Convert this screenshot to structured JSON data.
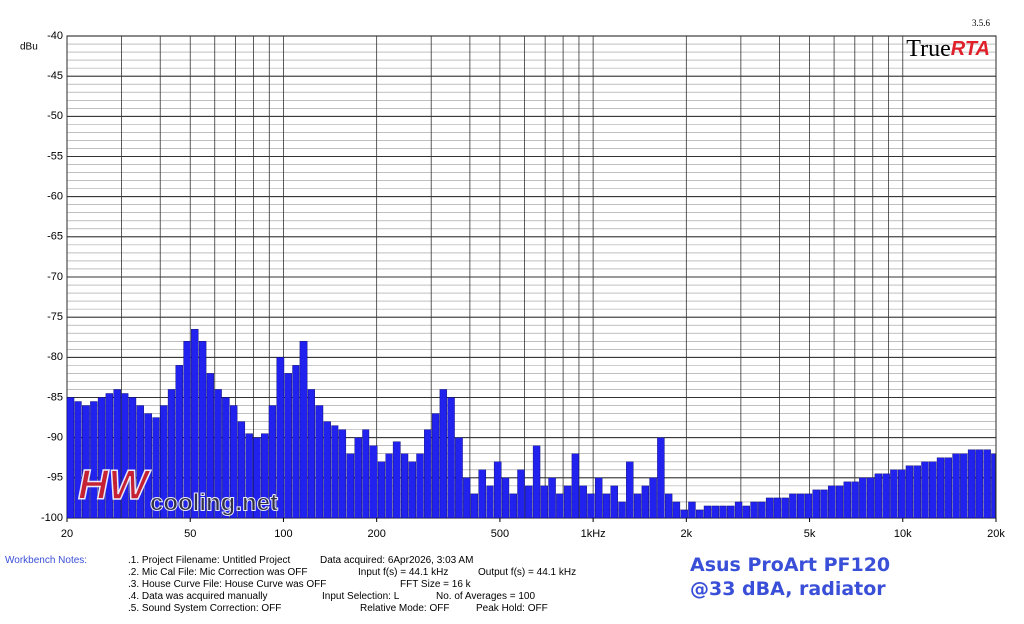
{
  "chart_data": {
    "type": "bar",
    "version": "3.5.6",
    "logo": [
      "True",
      "RTA"
    ],
    "watermark": [
      "HW",
      "cooling.net"
    ],
    "ylabel": "dBu",
    "annotation": [
      "Asus ProArt PF120",
      "@33 dBA, radiator"
    ],
    "color": "#2222ee",
    "log_x": true,
    "xlim": [
      20,
      20000
    ],
    "ylim": [
      -100,
      -40
    ],
    "yticks": [
      -40,
      -45,
      -50,
      -55,
      -60,
      -65,
      -70,
      -75,
      -80,
      -85,
      -90,
      -95,
      -100
    ],
    "ygrid_step": 1,
    "xticks": [
      20,
      50,
      100,
      200,
      500,
      {
        "value": 1000,
        "label": "1kHz"
      },
      {
        "value": 2000,
        "label": "2k"
      },
      {
        "value": 5000,
        "label": "5k"
      },
      {
        "value": 10000,
        "label": "10k"
      },
      {
        "value": 20000,
        "label": "20k"
      }
    ],
    "xgrid": [
      20,
      30,
      40,
      50,
      60,
      70,
      80,
      90,
      100,
      200,
      300,
      400,
      500,
      600,
      700,
      800,
      900,
      1000,
      2000,
      3000,
      4000,
      5000,
      6000,
      7000,
      8000,
      9000,
      10000,
      20000
    ],
    "x": [
      20,
      21.2,
      22.4,
      23.8,
      25.2,
      26.7,
      28.3,
      30,
      31.7,
      33.6,
      35.6,
      37.8,
      40,
      42.4,
      44.9,
      47.6,
      50.4,
      53.4,
      56.6,
      59.9,
      63.5,
      67.3,
      71.3,
      75.5,
      80,
      84.8,
      89.8,
      95.1,
      101,
      107,
      113,
      120,
      127,
      135,
      143,
      151,
      160,
      170,
      180,
      190,
      202,
      214,
      226,
      240,
      254,
      269,
      285,
      302,
      320,
      339,
      359,
      381,
      403,
      427,
      453,
      479,
      508,
      538,
      570,
      604,
      640,
      678,
      718,
      761,
      806,
      854,
      905,
      959,
      1016,
      1076,
      1140,
      1208,
      1280,
      1356,
      1437,
      1522,
      1613,
      1709,
      1810,
      1918,
      2032,
      2153,
      2281,
      2416,
      2560,
      2712,
      2874,
      3044,
      3225,
      3417,
      3620,
      3836,
      4064,
      4305,
      4561,
      4833,
      5120,
      5424,
      5747,
      6089,
      6451,
      6834,
      7241,
      7671,
      8127,
      8611,
      9123,
      9665,
      10240,
      10849,
      11494,
      12177,
      12902,
      13669,
      14482,
      15343,
      16255,
      17222,
      18246,
      19331
    ],
    "values": [
      -85,
      -85.5,
      -86,
      -85.5,
      -85,
      -84.5,
      -84,
      -84.5,
      -85,
      -86,
      -87,
      -87.5,
      -86,
      -84,
      -81,
      -78,
      -76.5,
      -78,
      -82,
      -84,
      -85,
      -86,
      -88,
      -89.5,
      -90,
      -89.5,
      -86,
      -80,
      -82,
      -81,
      -78,
      -84,
      -86,
      -88,
      -88.5,
      -89,
      -92,
      -90,
      -89,
      -91,
      -93,
      -92,
      -90.5,
      -92,
      -93,
      -92,
      -89,
      -87,
      -84,
      -85,
      -90,
      -95,
      -97,
      -94,
      -96,
      -93,
      -95,
      -97,
      -94,
      -96,
      -91,
      -96,
      -95,
      -97,
      -96,
      -92,
      -96,
      -97,
      -95,
      -97,
      -96,
      -98,
      -93,
      -97,
      -96,
      -95,
      -90,
      -97,
      -98,
      -99,
      -98,
      -99,
      -98.5,
      -98.5,
      -98.5,
      -98.5,
      -98,
      -98.5,
      -98,
      -98,
      -97.5,
      -97.5,
      -97.5,
      -97,
      -97,
      -97,
      -96.5,
      -96.5,
      -96,
      -96,
      -95.5,
      -95.5,
      -95,
      -95,
      -94.5,
      -94.5,
      -94,
      -94,
      -93.5,
      -93.5,
      -93,
      -93,
      -92.5,
      -92.5,
      -92,
      -92,
      -91.5,
      -91.5,
      -91.5,
      -92
    ]
  },
  "notes": {
    "heading": "Workbench Notes:",
    "rows": [
      [
        ".1. Project Filename: Untitled Project",
        "Data acquired: 6Apr2026, 3:03 AM"
      ],
      [
        ".2. Mic Cal File: Mic Correction was OFF",
        "Input f(s) = 44.1 kHz",
        "Output f(s) = 44.1 kHz"
      ],
      [
        ".3. House Curve File: House Curve was OFF",
        "FFT Size = 16 k"
      ],
      [
        ".4. Data was acquired manually",
        "Input Selection: L",
        "No. of Averages = 100"
      ],
      [
        ".5. Sound System Correction: OFF",
        "Relative Mode:  OFF",
        "Peak Hold: OFF"
      ]
    ]
  }
}
